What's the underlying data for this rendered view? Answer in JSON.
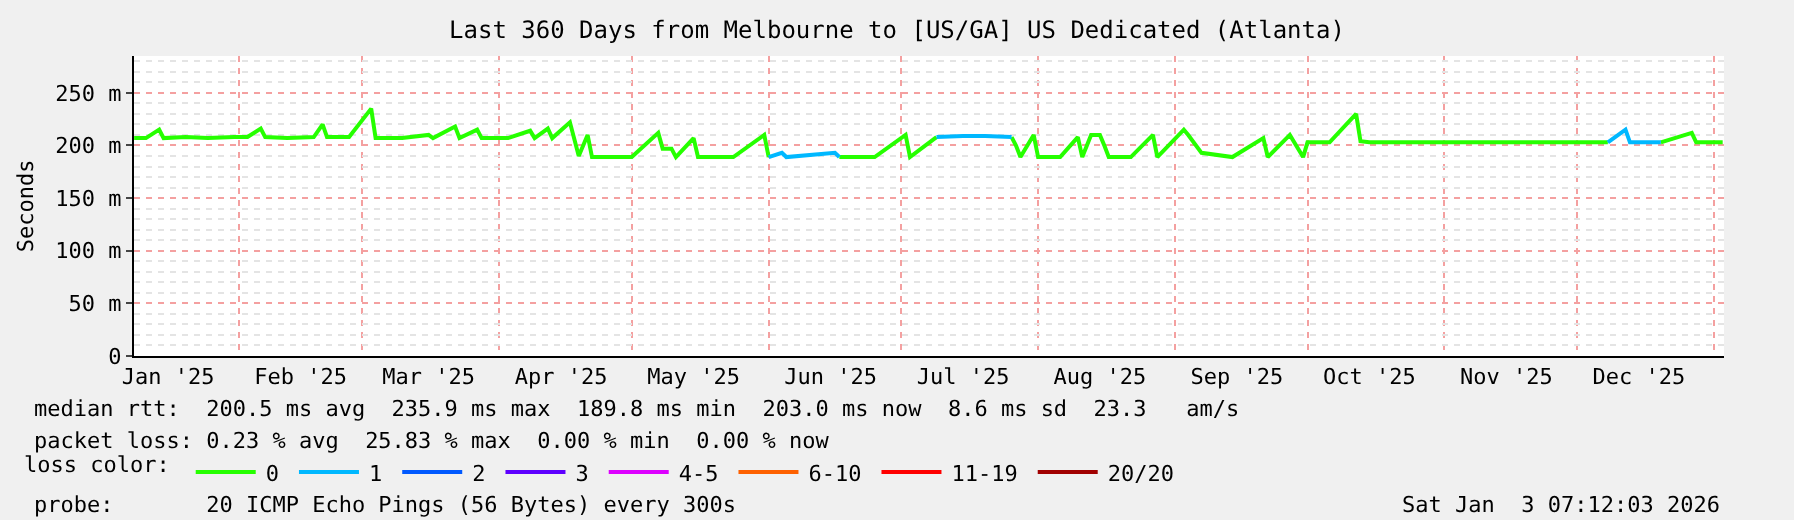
{
  "chart_data": {
    "type": "line",
    "title": "Last 360 Days from Melbourne to [US/GA] US Dedicated (Atlanta)",
    "ylabel": "Seconds",
    "x": [
      "2025-01-08T08:00",
      "2025-01-11",
      "2025-01-14",
      "2025-01-15",
      "2025-01-20",
      "2025-01-25",
      "2025-01-31",
      "2025-02-03",
      "2025-02-06",
      "2025-02-07",
      "2025-02-12",
      "2025-02-18",
      "2025-02-20",
      "2025-02-21",
      "2025-02-26",
      "2025-03-03",
      "2025-03-04",
      "2025-03-10",
      "2025-03-16",
      "2025-03-17",
      "2025-03-22",
      "2025-03-23",
      "2025-03-27",
      "2025-03-28",
      "2025-04-03",
      "2025-04-08",
      "2025-04-09",
      "2025-04-12",
      "2025-04-13",
      "2025-04-17",
      "2025-04-19",
      "2025-04-21",
      "2025-04-22",
      "2025-05-01",
      "2025-05-07",
      "2025-05-08",
      "2025-05-10",
      "2025-05-11",
      "2025-05-15",
      "2025-05-16",
      "2025-05-24",
      "2025-05-31",
      "2025-06-01",
      "2025-06-04",
      "2025-06-05",
      "2025-06-16",
      "2025-06-17",
      "2025-06-25",
      "2025-07-02",
      "2025-07-03",
      "2025-07-09",
      "2025-07-15",
      "2025-07-20",
      "2025-07-26",
      "2025-07-27",
      "2025-07-28",
      "2025-07-31",
      "2025-08-01",
      "2025-08-06",
      "2025-08-10",
      "2025-08-11",
      "2025-08-13",
      "2025-08-15",
      "2025-08-16",
      "2025-08-17",
      "2025-08-22",
      "2025-08-27",
      "2025-08-28",
      "2025-09-03",
      "2025-09-04",
      "2025-09-07",
      "2025-09-14",
      "2025-09-21",
      "2025-09-22",
      "2025-09-27",
      "2025-09-30",
      "2025-10-01",
      "2025-10-06",
      "2025-10-12",
      "2025-10-13",
      "2025-10-15",
      "2025-10-20",
      "2025-10-27",
      "2025-11-03",
      "2025-11-10",
      "2025-11-17",
      "2025-11-24",
      "2025-12-01",
      "2025-12-08",
      "2025-12-12",
      "2025-12-13",
      "2025-12-20",
      "2025-12-27",
      "2025-12-28",
      "2026-01-03"
    ],
    "series": [
      {
        "name": "0",
        "color": "#26ff00",
        "values": [
          207,
          207,
          215,
          207,
          208,
          207,
          208,
          208,
          216,
          208,
          207,
          208,
          220,
          208,
          208,
          235,
          207,
          207,
          210,
          207,
          218,
          207,
          215,
          207,
          207,
          214,
          207,
          216,
          207,
          222,
          190,
          210,
          189,
          189,
          212,
          197,
          197,
          189,
          207,
          189,
          189,
          210,
          189,
          null,
          null,
          null,
          189,
          189,
          210,
          189,
          208,
          null,
          null,
          208,
          200,
          189,
          210,
          189,
          189,
          208,
          189,
          210,
          210,
          200,
          189,
          189,
          210,
          189,
          215,
          210,
          193,
          189,
          207,
          189,
          210,
          189,
          203,
          203,
          230,
          204,
          203,
          203,
          203,
          203,
          203,
          203,
          203,
          203,
          203,
          null,
          null,
          203,
          212,
          203,
          203
        ]
      },
      {
        "name": "1",
        "color": "#00b8ff",
        "values": [
          null,
          null,
          null,
          null,
          null,
          null,
          null,
          null,
          null,
          null,
          null,
          null,
          null,
          null,
          null,
          null,
          null,
          null,
          null,
          null,
          null,
          null,
          null,
          null,
          null,
          null,
          null,
          null,
          null,
          null,
          null,
          null,
          null,
          null,
          null,
          null,
          null,
          null,
          null,
          null,
          null,
          null,
          189,
          193,
          189,
          193,
          189,
          null,
          null,
          null,
          208,
          209,
          209,
          208,
          null,
          null,
          null,
          null,
          null,
          null,
          null,
          null,
          null,
          null,
          null,
          null,
          null,
          null,
          null,
          null,
          null,
          null,
          null,
          null,
          null,
          null,
          null,
          null,
          null,
          null,
          null,
          null,
          null,
          null,
          null,
          null,
          null,
          null,
          203,
          215,
          203,
          203,
          null,
          null,
          null
        ]
      },
      {
        "name": "2",
        "color": "#0059ff",
        "values": [
          null,
          null,
          null,
          null,
          null,
          null,
          null,
          null,
          null,
          null,
          null,
          null,
          null,
          null,
          null,
          null,
          null,
          null,
          null,
          null,
          null,
          null,
          null,
          null,
          null,
          null,
          null,
          null,
          null,
          null,
          null,
          null,
          null,
          null,
          null,
          null,
          null,
          null,
          null,
          null,
          null,
          null,
          null,
          null,
          null,
          null,
          null,
          null,
          null,
          null,
          null,
          null,
          null,
          null,
          null,
          null,
          null,
          null,
          null,
          null,
          null,
          null,
          null,
          null,
          null,
          null,
          null,
          null,
          null,
          null,
          null,
          null,
          null,
          null,
          null,
          null,
          null,
          null,
          null,
          null,
          null,
          null,
          null,
          null,
          null,
          null,
          null,
          null,
          null,
          null,
          null,
          null,
          null,
          null,
          null
        ]
      },
      {
        "name": "3",
        "color": "#5e00ff",
        "values": [
          null,
          null,
          null,
          null,
          null,
          null,
          null,
          null,
          null,
          null,
          null,
          null,
          null,
          null,
          null,
          null,
          null,
          null,
          null,
          null,
          null,
          null,
          null,
          null,
          null,
          null,
          null,
          null,
          null,
          null,
          null,
          null,
          null,
          null,
          null,
          null,
          null,
          null,
          null,
          null,
          null,
          null,
          null,
          null,
          null,
          null,
          null,
          null,
          null,
          null,
          null,
          null,
          null,
          null,
          null,
          null,
          null,
          null,
          null,
          null,
          null,
          null,
          null,
          null,
          null,
          null,
          null,
          null,
          null,
          null,
          null,
          null,
          null,
          null,
          null,
          null,
          null,
          null,
          null,
          null,
          null,
          null,
          null,
          null,
          null,
          null,
          null,
          null,
          null,
          null,
          null,
          null,
          null,
          null,
          null
        ]
      },
      {
        "name": "4-5",
        "color": "#dd00ff",
        "values": [
          null,
          null,
          null,
          null,
          null,
          null,
          null,
          null,
          null,
          null,
          null,
          null,
          null,
          null,
          null,
          null,
          null,
          null,
          null,
          null,
          null,
          null,
          null,
          null,
          null,
          null,
          null,
          null,
          null,
          null,
          null,
          null,
          null,
          null,
          null,
          null,
          null,
          null,
          null,
          null,
          null,
          null,
          null,
          null,
          null,
          null,
          null,
          null,
          null,
          null,
          null,
          null,
          null,
          null,
          null,
          null,
          null,
          null,
          null,
          null,
          null,
          null,
          null,
          null,
          null,
          null,
          null,
          null,
          null,
          null,
          null,
          null,
          null,
          null,
          null,
          null,
          null,
          null,
          null,
          null,
          null,
          null,
          null,
          null,
          null,
          null,
          null,
          null,
          null,
          null,
          null,
          null,
          null,
          null,
          null
        ]
      },
      {
        "name": "6-10",
        "color": "#fe6100",
        "values": [
          null,
          null,
          null,
          null,
          null,
          null,
          null,
          null,
          null,
          null,
          null,
          null,
          null,
          null,
          null,
          null,
          null,
          null,
          null,
          null,
          null,
          null,
          null,
          null,
          null,
          null,
          null,
          null,
          null,
          null,
          null,
          null,
          null,
          null,
          null,
          null,
          null,
          null,
          null,
          null,
          null,
          null,
          null,
          null,
          null,
          null,
          null,
          null,
          null,
          null,
          null,
          null,
          null,
          null,
          null,
          null,
          null,
          null,
          null,
          null,
          null,
          null,
          null,
          null,
          null,
          null,
          null,
          null,
          null,
          null,
          null,
          null,
          null,
          null,
          null,
          null,
          null,
          null,
          null,
          null,
          null,
          null,
          null,
          null,
          null,
          null,
          null,
          null,
          null,
          null,
          null,
          null,
          null,
          null,
          null
        ]
      },
      {
        "name": "11-19",
        "color": "#ff0000",
        "values": [
          null,
          null,
          null,
          null,
          null,
          null,
          null,
          null,
          null,
          null,
          null,
          null,
          null,
          null,
          null,
          null,
          null,
          null,
          null,
          null,
          null,
          null,
          null,
          null,
          null,
          null,
          null,
          null,
          null,
          null,
          null,
          null,
          null,
          null,
          null,
          null,
          null,
          null,
          null,
          null,
          null,
          null,
          null,
          null,
          null,
          null,
          null,
          null,
          null,
          null,
          null,
          null,
          null,
          null,
          null,
          null,
          null,
          null,
          null,
          null,
          null,
          null,
          null,
          null,
          null,
          null,
          null,
          null,
          null,
          null,
          null,
          null,
          null,
          null,
          null,
          null,
          null,
          null,
          null,
          null,
          null,
          null,
          null,
          null,
          null,
          null,
          null,
          null,
          null,
          null,
          null,
          null,
          null,
          null,
          null
        ]
      },
      {
        "name": "20/20",
        "color": "#a10000",
        "values": [
          null,
          null,
          null,
          null,
          null,
          null,
          null,
          null,
          null,
          null,
          null,
          null,
          null,
          null,
          null,
          null,
          null,
          null,
          null,
          null,
          null,
          null,
          null,
          null,
          null,
          null,
          null,
          null,
          null,
          null,
          null,
          null,
          null,
          null,
          null,
          null,
          null,
          null,
          null,
          null,
          null,
          null,
          null,
          null,
          null,
          null,
          null,
          null,
          null,
          null,
          null,
          null,
          null,
          null,
          null,
          null,
          null,
          null,
          null,
          null,
          null,
          null,
          null,
          null,
          null,
          null,
          null,
          null,
          null,
          null,
          null,
          null,
          null,
          null,
          null,
          null,
          null,
          null,
          null,
          null,
          null,
          null,
          null,
          null,
          null,
          null,
          null,
          null,
          null,
          null,
          null,
          null,
          null,
          null,
          null
        ]
      }
    ],
    "legend_title": "loss color:",
    "legend": "bottom",
    "xlim": [
      "2025-01-08T07:12",
      "2026-01-03T07:12"
    ],
    "xticks": [
      {
        "value": "2025-01-16",
        "label": "Jan '25"
      },
      {
        "value": "2025-02-15",
        "label": "Feb '25"
      },
      {
        "value": "2025-03-16",
        "label": "Mar '25"
      },
      {
        "value": "2025-04-15",
        "label": "Apr '25"
      },
      {
        "value": "2025-05-15",
        "label": "May '25"
      },
      {
        "value": "2025-06-15",
        "label": "Jun '25"
      },
      {
        "value": "2025-07-15",
        "label": "Jul '25"
      },
      {
        "value": "2025-08-15",
        "label": "Aug '25"
      },
      {
        "value": "2025-09-15",
        "label": "Sep '25"
      },
      {
        "value": "2025-10-15",
        "label": "Oct '25"
      },
      {
        "value": "2025-11-15",
        "label": "Nov '25"
      },
      {
        "value": "2025-12-15",
        "label": "Dec '25"
      }
    ],
    "ylim": [
      0,
      285
    ],
    "yticks": [
      0,
      {
        "value": 50,
        "label": "50 m"
      },
      {
        "value": 100,
        "label": "100 m"
      },
      {
        "value": 150,
        "label": "150 m"
      },
      {
        "value": 200,
        "label": "200 m"
      },
      {
        "value": 250,
        "label": "250 m"
      }
    ],
    "grid": true,
    "marker": "none",
    "line_style": "solid",
    "annotations": [
      "median rtt:  200.5 ms avg  235.9 ms max  189.8 ms min  203.0 ms now  8.6 ms sd  23.3   am/s",
      "packet loss: 0.23 % avg  25.83 % max  0.00 % min  0.00 % now",
      "probe:       20 ICMP Echo Pings (56 Bytes) every 300s",
      "Sat Jan  3 07:12:03 2026"
    ]
  }
}
